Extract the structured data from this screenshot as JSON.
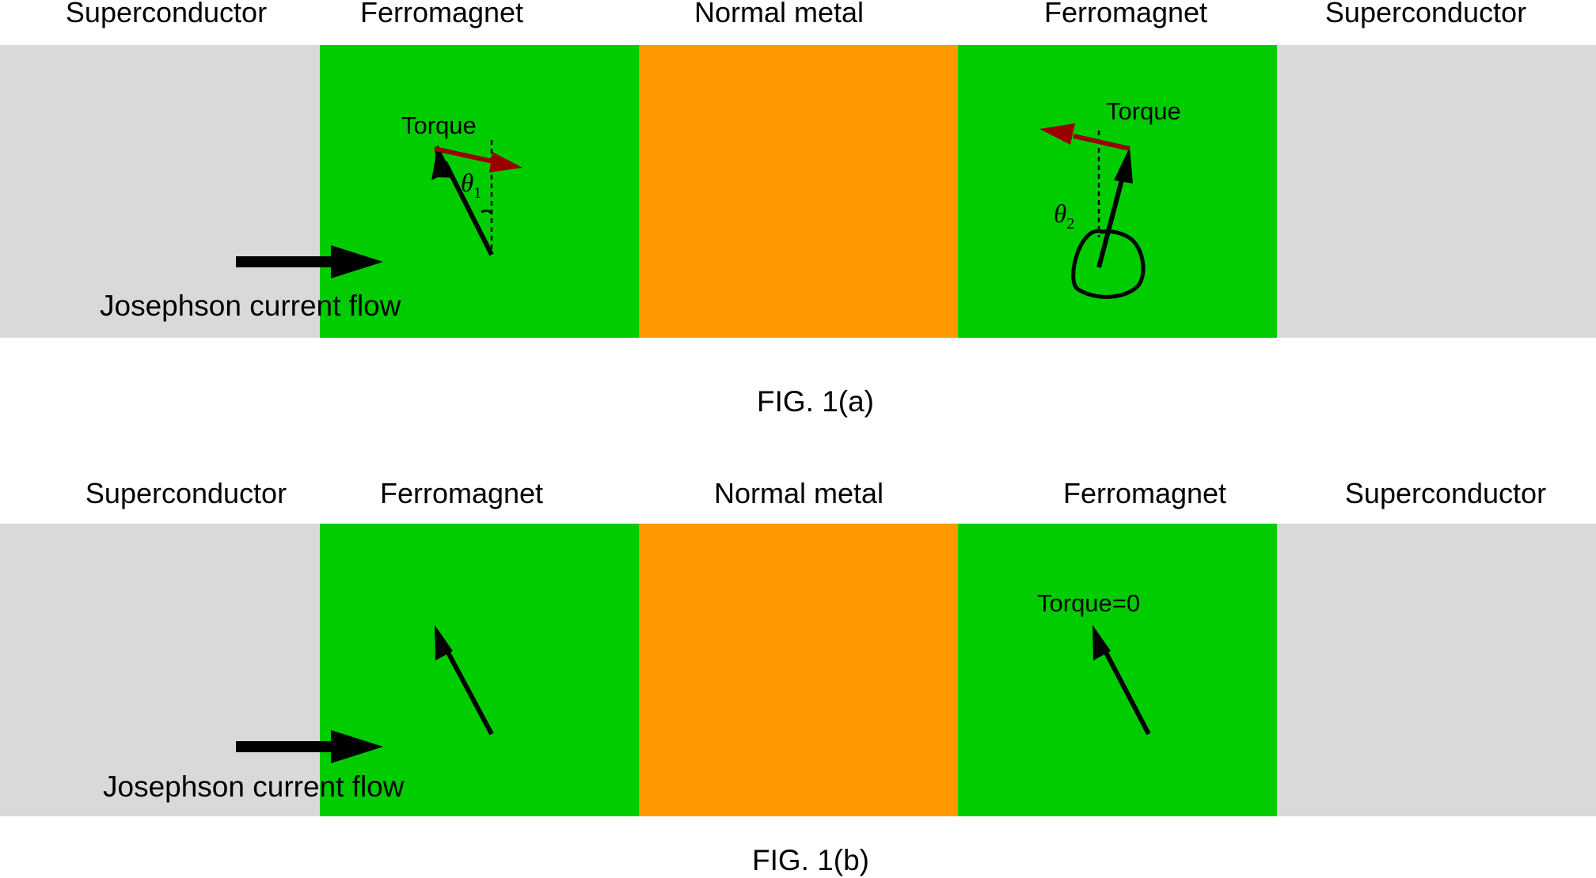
{
  "colors": {
    "superconductor": "#d9d9d9",
    "ferromagnet": "#00cc00",
    "normal_metal": "#ff9900",
    "torque_arrow": "#990000",
    "magnetization_arrow": "#000000"
  },
  "panel_a": {
    "layer_labels": [
      "Superconductor",
      "Ferromagnet",
      "Normal metal",
      "Ferromagnet",
      "Superconductor"
    ],
    "current_label": "Josephson current flow",
    "torque_left": "Torque",
    "torque_right": "Torque",
    "theta1_symbol": "θ",
    "theta1_sub": "1",
    "theta2_symbol": "θ",
    "theta2_sub": "2",
    "caption": "FIG. 1(a)"
  },
  "panel_b": {
    "layer_labels": [
      "Superconductor",
      "Ferromagnet",
      "Normal metal",
      "Ferromagnet",
      "Superconductor"
    ],
    "current_label": "Josephson current flow",
    "torque_right": "Torque=0",
    "caption": "FIG. 1(b)"
  }
}
